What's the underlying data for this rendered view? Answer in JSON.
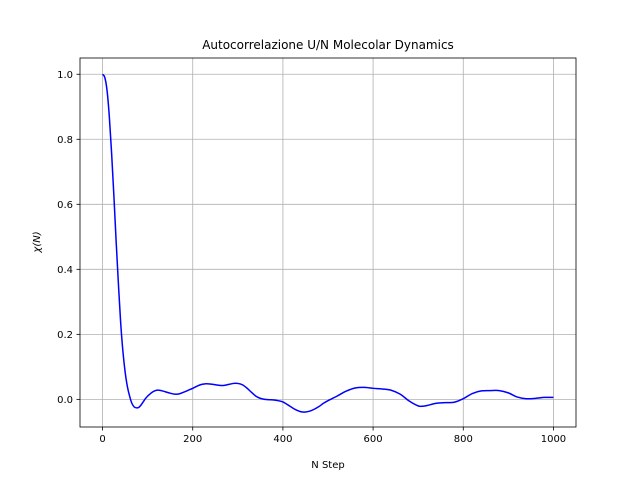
{
  "chart_data": {
    "type": "line",
    "title": "Autocorrelazione U/N Molecolar Dynamics",
    "xlabel": "N Step",
    "ylabel": "χ(N)",
    "xlim": [
      -50,
      1050
    ],
    "ylim": [
      -0.085,
      1.05
    ],
    "xticks": [
      0,
      200,
      400,
      600,
      800,
      1000
    ],
    "yticks": [
      0.0,
      0.2,
      0.4,
      0.6,
      0.8,
      1.0
    ],
    "xtick_labels": [
      "0",
      "200",
      "400",
      "600",
      "800",
      "1000"
    ],
    "ytick_labels": [
      "0.0",
      "0.2",
      "0.4",
      "0.6",
      "0.8",
      "1.0"
    ],
    "grid": true,
    "series": [
      {
        "color": "#0000ff",
        "x": [
          0,
          5,
          10,
          15,
          20,
          25,
          30,
          35,
          40,
          45,
          50,
          55,
          60,
          65,
          70,
          75,
          80,
          85,
          90,
          95,
          100,
          110,
          120,
          130,
          140,
          150,
          160,
          170,
          180,
          190,
          200,
          210,
          220,
          230,
          240,
          250,
          260,
          270,
          280,
          290,
          300,
          310,
          320,
          330,
          340,
          350,
          360,
          370,
          380,
          390,
          400,
          410,
          420,
          430,
          440,
          450,
          460,
          470,
          480,
          490,
          500,
          520,
          540,
          560,
          580,
          600,
          620,
          640,
          660,
          680,
          700,
          710,
          720,
          740,
          760,
          780,
          800,
          820,
          840,
          860,
          880,
          900,
          920,
          940,
          960,
          980,
          1000
        ],
        "y": [
          1.0,
          0.99,
          0.95,
          0.87,
          0.76,
          0.63,
          0.49,
          0.36,
          0.24,
          0.15,
          0.085,
          0.04,
          0.01,
          -0.012,
          -0.023,
          -0.026,
          -0.025,
          -0.018,
          -0.008,
          0.002,
          0.01,
          0.022,
          0.028,
          0.027,
          0.023,
          0.019,
          0.016,
          0.017,
          0.022,
          0.028,
          0.034,
          0.041,
          0.046,
          0.048,
          0.047,
          0.045,
          0.043,
          0.043,
          0.046,
          0.049,
          0.049,
          0.045,
          0.035,
          0.022,
          0.01,
          0.003,
          0.0,
          -0.001,
          -0.002,
          -0.004,
          -0.008,
          -0.016,
          -0.025,
          -0.033,
          -0.038,
          -0.039,
          -0.036,
          -0.03,
          -0.022,
          -0.012,
          -0.004,
          0.01,
          0.025,
          0.035,
          0.037,
          0.034,
          0.032,
          0.028,
          0.016,
          -0.005,
          -0.02,
          -0.021,
          -0.019,
          -0.012,
          -0.01,
          -0.009,
          0.002,
          0.018,
          0.026,
          0.027,
          0.027,
          0.02,
          0.007,
          0.002,
          0.003,
          0.006,
          0.006
        ]
      }
    ]
  }
}
